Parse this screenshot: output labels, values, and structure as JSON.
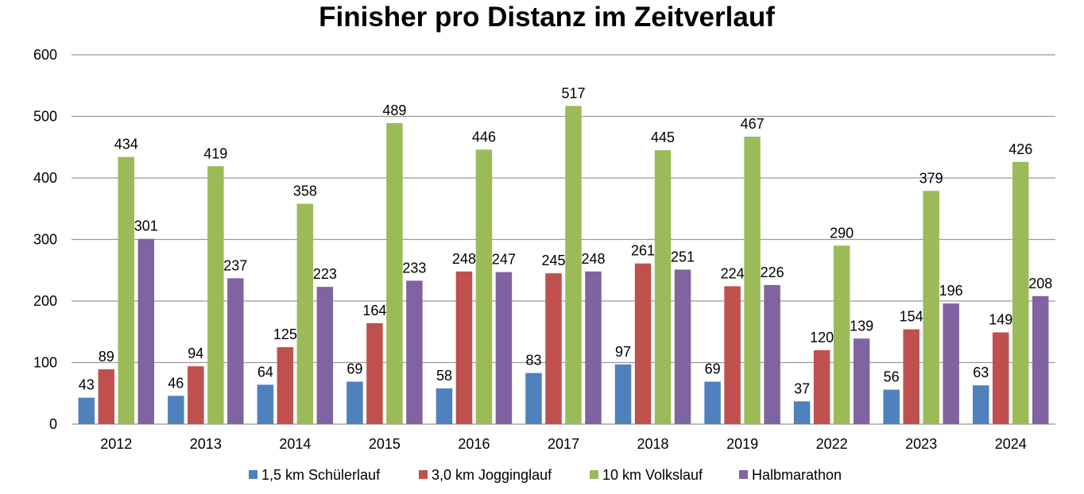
{
  "chart_data": {
    "type": "bar",
    "title": "Finisher pro Distanz im Zeitverlauf",
    "xlabel": "",
    "ylabel": "",
    "ylim": [
      0,
      600
    ],
    "yticks": [
      0,
      100,
      200,
      300,
      400,
      500,
      600
    ],
    "grid": "horizontal",
    "legend_position": "bottom",
    "categories": [
      "2012",
      "2013",
      "2014",
      "2015",
      "2016",
      "2017",
      "2018",
      "2019",
      "2022",
      "2023",
      "2024"
    ],
    "series": [
      {
        "name": "1,5 km Schülerlauf",
        "color": "#4F81BD",
        "values": [
          43,
          46,
          64,
          69,
          58,
          83,
          97,
          69,
          37,
          56,
          63
        ]
      },
      {
        "name": "3,0 km Jogginglauf",
        "color": "#C0504D",
        "values": [
          89,
          94,
          125,
          164,
          248,
          245,
          261,
          224,
          120,
          154,
          149
        ]
      },
      {
        "name": "10 km Volkslauf",
        "color": "#9BBB59",
        "values": [
          434,
          419,
          358,
          489,
          446,
          517,
          445,
          467,
          290,
          379,
          426
        ]
      },
      {
        "name": "Halbmarathon",
        "color": "#8064A2",
        "values": [
          301,
          237,
          223,
          233,
          247,
          248,
          251,
          226,
          139,
          196,
          208
        ]
      }
    ],
    "gridline_color": "#9a9a9a"
  }
}
